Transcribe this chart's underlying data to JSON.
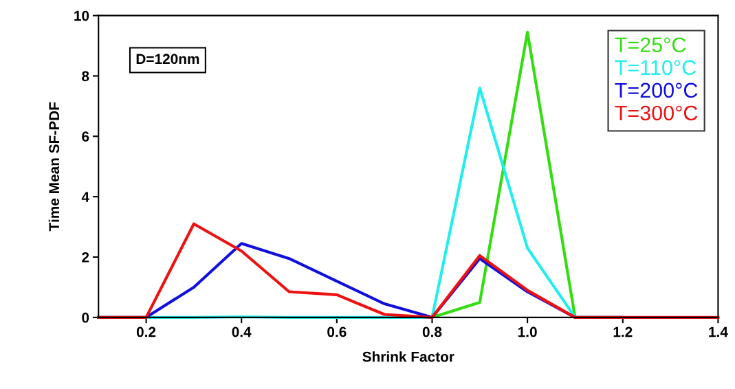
{
  "chart_data": {
    "type": "line",
    "xlabel": "Shrink Factor",
    "ylabel": "Time Mean SF-PDF",
    "x": [
      0.1,
      0.2,
      0.3,
      0.4,
      0.5,
      0.6,
      0.7,
      0.8,
      0.9,
      1.0,
      1.1,
      1.2,
      1.3,
      1.4
    ],
    "series": [
      {
        "name": "T=25°C",
        "color": "#33dd11",
        "values": [
          null,
          null,
          null,
          null,
          null,
          null,
          null,
          0,
          0.5,
          9.45,
          0,
          null,
          null,
          null
        ]
      },
      {
        "name": "T=110°C",
        "color": "#22eeee",
        "values": [
          0,
          0,
          0,
          0.02,
          0,
          0,
          0,
          0,
          7.6,
          2.3,
          0,
          0,
          null,
          null
        ]
      },
      {
        "name": "T=200°C",
        "color": "#1010dd",
        "values": [
          0,
          0,
          1.0,
          2.45,
          1.95,
          1.2,
          0.45,
          0,
          1.95,
          0.85,
          0,
          0,
          null,
          null
        ]
      },
      {
        "name": "T=300°C",
        "color": "#ee1111",
        "values": [
          0,
          0,
          3.1,
          2.2,
          0.85,
          0.75,
          0.1,
          0,
          2.05,
          0.9,
          0,
          0,
          0,
          0
        ]
      }
    ],
    "annotations": [
      "D=120nm"
    ],
    "xlim": [
      0.1,
      1.4
    ],
    "xticks": [
      {
        "value": 0.2,
        "label": "0.2"
      },
      {
        "value": 0.4,
        "label": "0.4"
      },
      {
        "value": 0.6,
        "label": "0.6"
      },
      {
        "value": 0.8,
        "label": "0.8"
      },
      {
        "value": 1.0,
        "label": "1.0"
      },
      {
        "value": 1.2,
        "label": "1.2"
      },
      {
        "value": 1.4,
        "label": "1.4"
      }
    ],
    "ylim": [
      0,
      10
    ],
    "yticks": [
      0,
      2,
      4,
      6,
      8,
      10
    ],
    "legend": "top right",
    "grid": false,
    "marker": "none",
    "line_style": "solid"
  }
}
